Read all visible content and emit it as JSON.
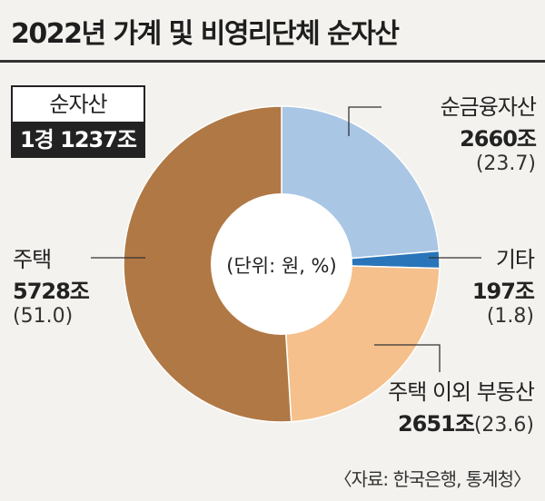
{
  "title": "2022년 가계 및 비영리단체 순자산",
  "total": {
    "label": "순자산",
    "value": "1경 1237조"
  },
  "center_note": "(단위: 원, %)",
  "source": "〈자료: 한국은행, 통계청〉",
  "colors": {
    "financial": "#a9c6e5",
    "other": "#2a75b9",
    "other_realestate": "#f5c08b",
    "housing": "#b07845"
  },
  "chart_data": {
    "type": "pie",
    "unit": "조 원",
    "series": [
      {
        "name": "순금융자산",
        "value": 2660,
        "value_label": "2660조",
        "percent": 23.7,
        "percent_label": "(23.7)"
      },
      {
        "name": "기타",
        "value": 197,
        "value_label": "197조",
        "percent": 1.8,
        "percent_label": "(1.8)"
      },
      {
        "name": "주택 이외 부동산",
        "value": 2651,
        "value_label": "2651조",
        "percent": 23.6,
        "percent_label": "(23.6)"
      },
      {
        "name": "주택",
        "value": 5728,
        "value_label": "5728조",
        "percent": 51.0,
        "percent_label": "(51.0)"
      }
    ]
  }
}
